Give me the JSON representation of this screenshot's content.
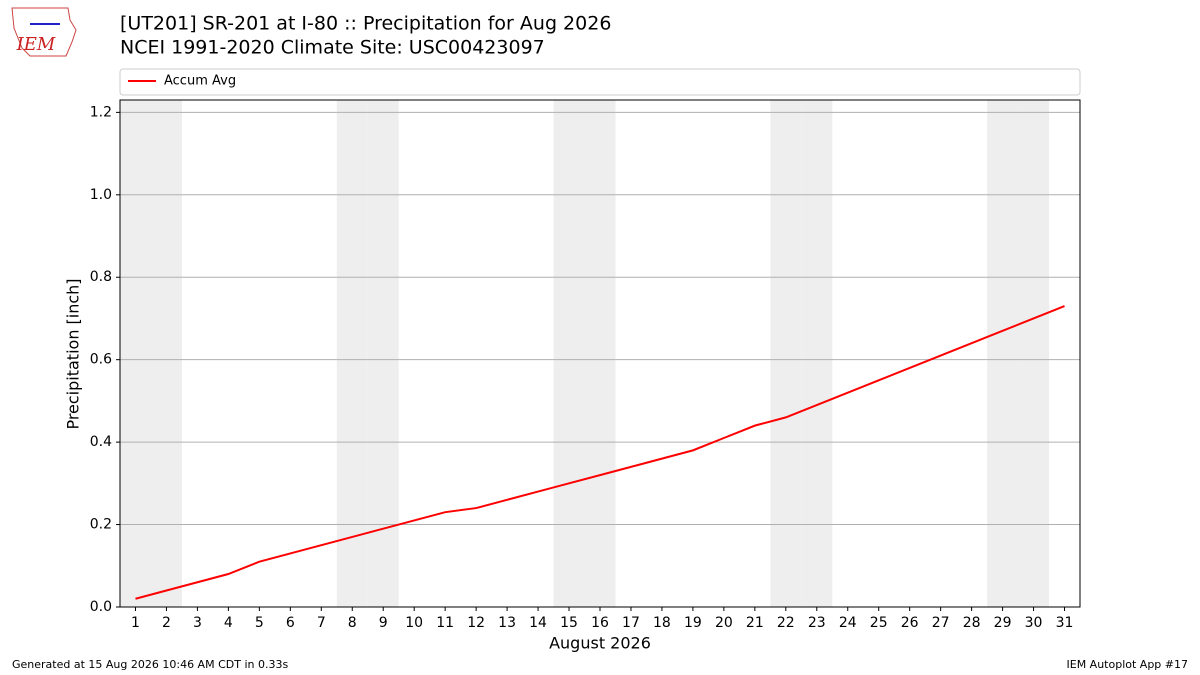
{
  "chart_data": {
    "type": "line",
    "logo_text": "IEM",
    "title": "[UT201] SR-201 at I-80  :: Precipitation for Aug 2026",
    "subtitle": "NCEI 1991-2020 Climate Site: USC00423097",
    "ylabel": "Precipitation [inch]",
    "xlabel": "August 2026",
    "x": [
      1,
      2,
      3,
      4,
      5,
      6,
      7,
      8,
      9,
      10,
      11,
      12,
      13,
      14,
      15,
      16,
      17,
      18,
      19,
      20,
      21,
      22,
      23,
      24,
      25,
      26,
      27,
      28,
      29,
      30,
      31
    ],
    "series": [
      {
        "name": "Accum Avg",
        "color": "#ff0000",
        "values": [
          0.02,
          0.04,
          0.06,
          0.08,
          0.11,
          0.13,
          0.15,
          0.17,
          0.19,
          0.21,
          0.23,
          0.24,
          0.26,
          0.28,
          0.3,
          0.32,
          0.34,
          0.36,
          0.38,
          0.41,
          0.44,
          0.46,
          0.49,
          0.52,
          0.55,
          0.58,
          0.61,
          0.64,
          0.67,
          0.7,
          0.73
        ]
      }
    ],
    "xlim": [
      0.5,
      31.5
    ],
    "ylim": [
      0,
      1.23
    ],
    "yticks": [
      {
        "value": 0,
        "label": "0.0"
      },
      0.2,
      0.4,
      0.6,
      0.8,
      {
        "value": 1,
        "label": "1.0"
      },
      1.2
    ],
    "grid": true,
    "shade": "weekends",
    "legend": "top",
    "footer_left": "Generated at 15 Aug 2026 10:46 AM CDT in 0.33s",
    "footer_right": "IEM Autoplot App #17"
  }
}
